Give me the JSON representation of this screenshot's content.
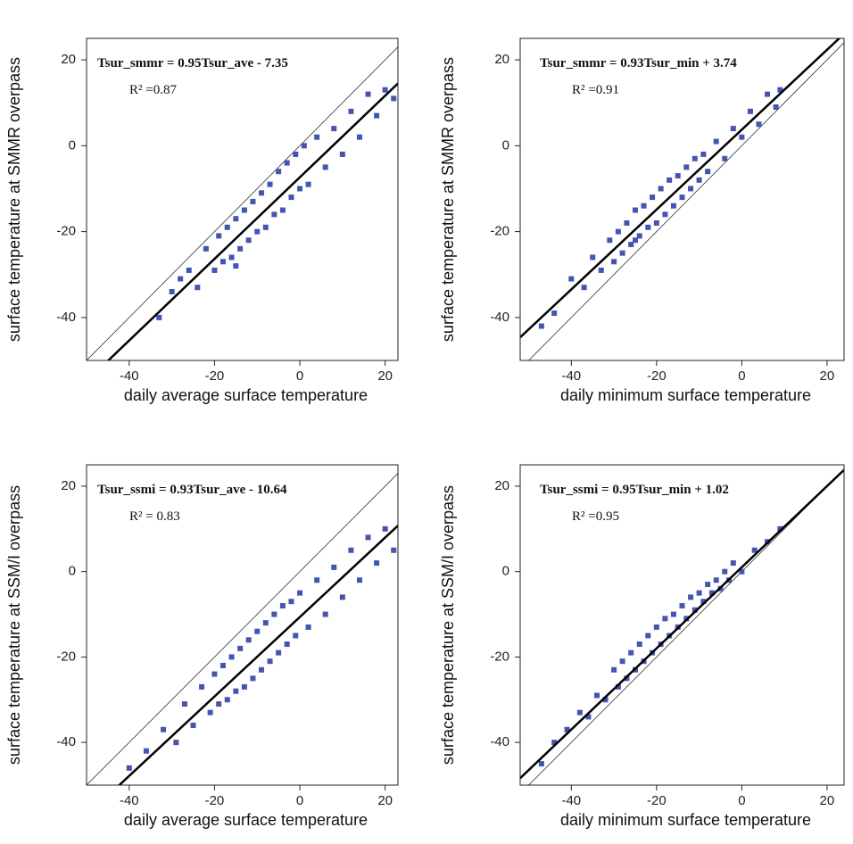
{
  "chart_data": [
    {
      "type": "scatter",
      "x_label": "daily average surface temperature",
      "y_label": "surface temperature at SMMR overpass",
      "equation": "Tsur_smmr = 0.95Tsur_ave - 7.35",
      "r2": "R² =0.87",
      "fit": {
        "slope": 0.95,
        "intercept": -7.35
      },
      "color": "#4455b0",
      "xlim": [
        -50,
        23
      ],
      "ylim": [
        -50,
        25
      ],
      "xticks": [
        -40,
        -20,
        0,
        20
      ],
      "yticks": [
        -40,
        -20,
        0,
        20
      ],
      "x": [
        -33,
        -30,
        -28,
        -26,
        -24,
        -22,
        -20,
        -19,
        -18,
        -17,
        -16,
        -15,
        -14,
        -13,
        -12,
        -11,
        -10,
        -9,
        -8,
        -7,
        -6,
        -5,
        -4,
        -3,
        -2,
        -1,
        0,
        1,
        2,
        4,
        6,
        8,
        10,
        12,
        14,
        16,
        18,
        20,
        22,
        -15
      ],
      "y": [
        -40,
        -34,
        -31,
        -29,
        -33,
        -24,
        -29,
        -21,
        -27,
        -19,
        -26,
        -17,
        -24,
        -15,
        -22,
        -13,
        -20,
        -11,
        -19,
        -9,
        -16,
        -6,
        -15,
        -4,
        -12,
        -2,
        -10,
        0,
        -9,
        2,
        -5,
        4,
        -2,
        8,
        2,
        12,
        7,
        13,
        11,
        -28
      ]
    },
    {
      "type": "scatter",
      "x_label": "daily minimum surface temperature",
      "y_label": "surface temperature at SMMR overpass",
      "equation": "Tsur_smmr = 0.93Tsur_min + 3.74",
      "r2": "R² =0.91",
      "fit": {
        "slope": 0.93,
        "intercept": 3.74
      },
      "color": "#4455b0",
      "xlim": [
        -52,
        24
      ],
      "ylim": [
        -50,
        25
      ],
      "xticks": [
        -40,
        -20,
        0,
        20
      ],
      "yticks": [
        -40,
        -20,
        0,
        20
      ],
      "x": [
        -47,
        -44,
        -40,
        -37,
        -35,
        -33,
        -31,
        -30,
        -29,
        -28,
        -27,
        -26,
        -25,
        -24,
        -23,
        -22,
        -21,
        -20,
        -19,
        -18,
        -17,
        -16,
        -15,
        -14,
        -13,
        -12,
        -11,
        -10,
        -9,
        -8,
        -6,
        -4,
        -2,
        0,
        2,
        4,
        6,
        8,
        9,
        -25
      ],
      "y": [
        -42,
        -39,
        -31,
        -33,
        -26,
        -29,
        -22,
        -27,
        -20,
        -25,
        -18,
        -23,
        -15,
        -21,
        -14,
        -19,
        -12,
        -18,
        -10,
        -16,
        -8,
        -14,
        -7,
        -12,
        -5,
        -10,
        -3,
        -8,
        -2,
        -6,
        1,
        -3,
        4,
        2,
        8,
        5,
        12,
        9,
        13,
        -22
      ]
    },
    {
      "type": "scatter",
      "x_label": "daily average surface temperature",
      "y_label": "surface temperature at SSM/I overpass",
      "equation": "Tsur_ssmi = 0.93Tsur_ave - 10.64",
      "r2": "R² = 0.83",
      "fit": {
        "slope": 0.93,
        "intercept": -10.64
      },
      "color": "#4455b0",
      "xlim": [
        -50,
        23
      ],
      "ylim": [
        -50,
        25
      ],
      "xticks": [
        -40,
        -20,
        0,
        20
      ],
      "yticks": [
        -40,
        -20,
        0,
        20
      ],
      "x": [
        -40,
        -36,
        -32,
        -29,
        -27,
        -25,
        -23,
        -21,
        -20,
        -19,
        -18,
        -17,
        -16,
        -15,
        -14,
        -13,
        -12,
        -11,
        -10,
        -9,
        -8,
        -7,
        -6,
        -5,
        -4,
        -3,
        -2,
        -1,
        0,
        2,
        4,
        6,
        8,
        10,
        12,
        14,
        16,
        18,
        20,
        22
      ],
      "y": [
        -46,
        -42,
        -37,
        -40,
        -31,
        -36,
        -27,
        -33,
        -24,
        -31,
        -22,
        -30,
        -20,
        -28,
        -18,
        -27,
        -16,
        -25,
        -14,
        -23,
        -12,
        -21,
        -10,
        -19,
        -8,
        -17,
        -7,
        -15,
        -5,
        -13,
        -2,
        -10,
        1,
        -6,
        5,
        -2,
        8,
        2,
        10,
        5
      ]
    },
    {
      "type": "scatter",
      "x_label": "daily minimum surface temperature",
      "y_label": "surface temperature at SSM/I overpass",
      "equation": "Tsur_ssmi = 0.95Tsur_min + 1.02",
      "r2": "R² =0.95",
      "fit": {
        "slope": 0.95,
        "intercept": 1.02
      },
      "color": "#4455b0",
      "xlim": [
        -52,
        24
      ],
      "ylim": [
        -50,
        25
      ],
      "xticks": [
        -40,
        -20,
        0,
        20
      ],
      "yticks": [
        -40,
        -20,
        0,
        20
      ],
      "x": [
        -47,
        -44,
        -41,
        -38,
        -36,
        -34,
        -32,
        -30,
        -29,
        -28,
        -27,
        -26,
        -25,
        -24,
        -23,
        -22,
        -21,
        -20,
        -19,
        -18,
        -17,
        -16,
        -15,
        -14,
        -13,
        -12,
        -11,
        -10,
        -9,
        -8,
        -7,
        -6,
        -5,
        -4,
        -3,
        -2,
        0,
        3,
        6,
        9
      ],
      "y": [
        -45,
        -40,
        -37,
        -33,
        -34,
        -29,
        -30,
        -23,
        -27,
        -21,
        -25,
        -19,
        -23,
        -17,
        -21,
        -15,
        -19,
        -13,
        -17,
        -11,
        -15,
        -10,
        -13,
        -8,
        -11,
        -6,
        -9,
        -5,
        -7,
        -3,
        -5,
        -2,
        -4,
        0,
        -2,
        2,
        0,
        5,
        7,
        10
      ]
    }
  ]
}
